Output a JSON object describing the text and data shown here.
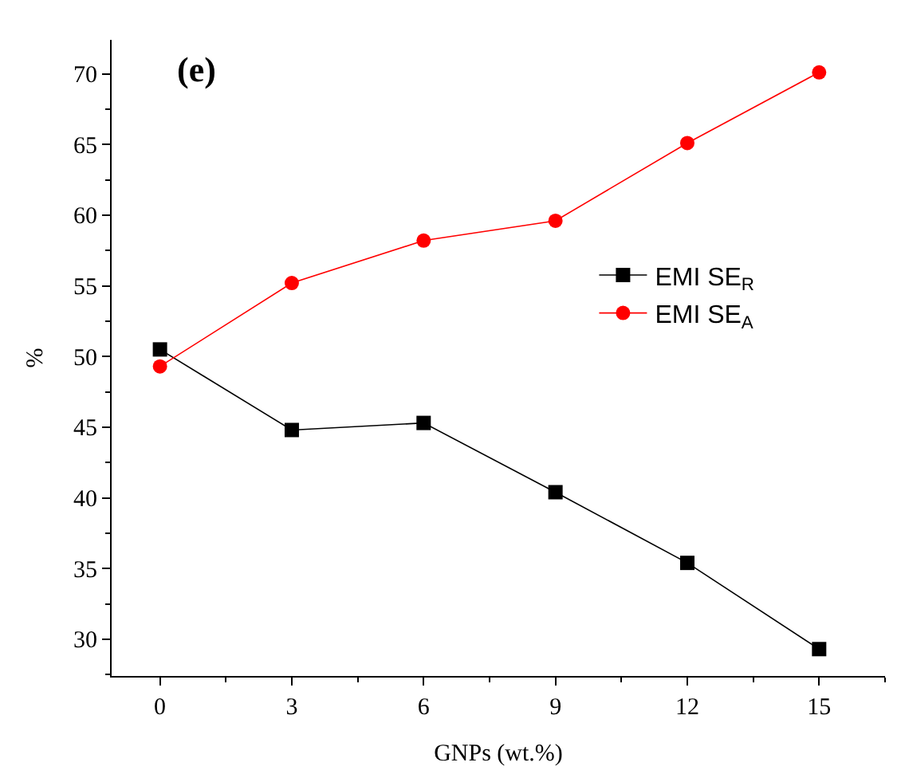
{
  "chart_data": {
    "type": "line",
    "xlabel": "GNPs (wt.%)",
    "ylabel": "%",
    "annotations": [
      "(e)"
    ],
    "x": [
      0,
      3,
      6,
      9,
      12,
      15
    ],
    "series": [
      {
        "name": "EMI SE$_{R}$",
        "color": "#000000",
        "marker": "square",
        "values": [
          50.5,
          44.8,
          45.3,
          40.4,
          35.4,
          29.3
        ]
      },
      {
        "name": "EMI SE$_{A}$",
        "color": "#ff0000",
        "marker": "circle",
        "values": [
          49.3,
          55.2,
          58.2,
          59.6,
          65.1,
          70.1
        ]
      }
    ],
    "xlim": [
      -1.1,
      16.5
    ],
    "xticks": [
      0,
      3,
      6,
      9,
      12,
      15
    ],
    "ylim": [
      27.4,
      72.4
    ],
    "yticks": [
      30,
      35,
      40,
      45,
      50,
      55,
      60,
      65,
      70
    ],
    "legend": "right",
    "line_style": "solid"
  }
}
